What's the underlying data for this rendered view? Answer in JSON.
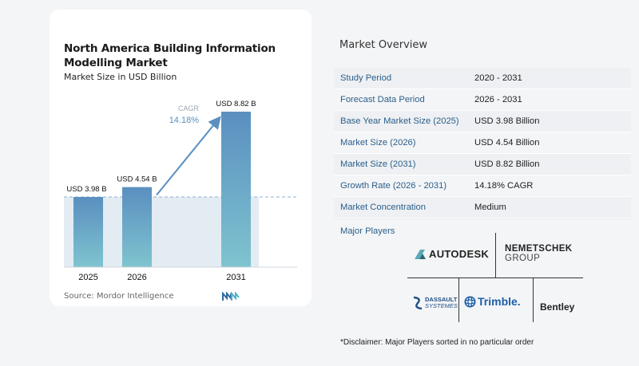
{
  "chart_data": {
    "type": "bar",
    "title": "North America Building Information Modelling Market",
    "subtitle": "Market Size in USD Billion",
    "categories": [
      "2025",
      "2026",
      "2031"
    ],
    "values": [
      3.98,
      4.54,
      8.82
    ],
    "value_labels": [
      "USD 3.98 B",
      "USD 4.54 B",
      "USD 8.82 B"
    ],
    "ylim": [
      0,
      9.5
    ],
    "cagr_label": "CAGR",
    "cagr_value": "14.18%",
    "colors": {
      "bar_top": "#5a8fc0",
      "bar_bottom": "#7fc4cf",
      "band": "#e3ebf3",
      "arrow": "#5a8fc0"
    }
  },
  "source": "Source:  Mordor Intelligence",
  "overview": {
    "title": "Market Overview",
    "rows": [
      {
        "key": "Study Period",
        "value": "2020 - 2031"
      },
      {
        "key": "Forecast Data Period",
        "value": "2026 - 2031"
      },
      {
        "key": "Base Year Market Size (2025)",
        "value": "USD 3.98 Billion"
      },
      {
        "key": "Market Size (2026)",
        "value": "USD 4.54 Billion"
      },
      {
        "key": "Market Size (2031)",
        "value": "USD 8.82 Billion"
      },
      {
        "key": "Growth Rate (2026 - 2031)",
        "value": "14.18% CAGR"
      },
      {
        "key": "Market Concentration",
        "value": "Medium"
      }
    ]
  },
  "players": {
    "title": "Major Players",
    "logos": {
      "autodesk": "AUTODESK",
      "nemetschek_1": "NEMETSCHEK",
      "nemetschek_2": "GROUP",
      "dassault_1": "DASSAULT",
      "dassault_2": "SYSTEMES",
      "trimble": "Trimble.",
      "bentley": "Bentley"
    }
  },
  "disclaimer": "*Disclaimer: Major Players sorted in no particular order"
}
